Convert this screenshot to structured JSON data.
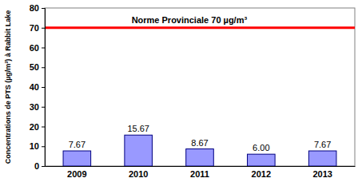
{
  "chart_data": {
    "type": "bar",
    "y_label": "Concentrations de PTS (µg/m³) à Rabbit Lake",
    "categories": [
      "2009",
      "2010",
      "2011",
      "2012",
      "2013"
    ],
    "values": [
      7.67,
      15.67,
      8.67,
      6.0,
      7.67
    ],
    "value_labels": [
      "7.67",
      "15.67",
      "8.67",
      "6.00",
      "7.67"
    ],
    "data_labels": true,
    "color": "#9999ff",
    "ylim": [
      0,
      80
    ],
    "yticks": [
      0,
      10,
      20,
      30,
      40,
      50,
      60,
      70,
      80
    ],
    "grid": false,
    "annotations": [
      {
        "label": "Norme Provinciale 70 µg/m³",
        "y": 70,
        "color": "#ff0000"
      }
    ]
  }
}
